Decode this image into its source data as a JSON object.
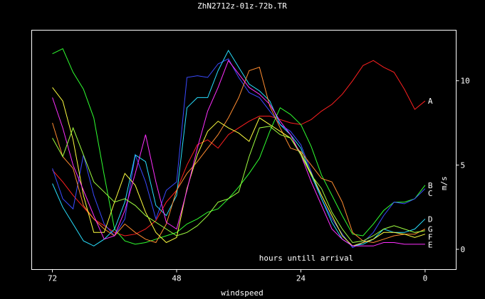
{
  "chart_data": {
    "type": "line",
    "title": "ZhN2712z-01z-72b.TR",
    "xlabel": "windspeed",
    "ylabel": "m/s",
    "annotation": "hours untill arrival",
    "x_ticks": [
      72,
      48,
      24,
      0
    ],
    "y_ticks": [
      0,
      5,
      10
    ],
    "xlim": [
      76,
      -6
    ],
    "ylim": [
      -1.2,
      13
    ],
    "x": [
      72,
      70,
      68,
      66,
      64,
      62,
      60,
      58,
      56,
      54,
      52,
      50,
      48,
      46,
      44,
      42,
      40,
      38,
      36,
      34,
      32,
      30,
      28,
      26,
      24,
      22,
      20,
      18,
      16,
      14,
      12,
      10,
      8,
      6,
      4,
      2,
      0
    ],
    "series": [
      {
        "name": "A",
        "color": "#ff2020",
        "values": [
          4.7,
          4.0,
          3.2,
          2.5,
          1.8,
          1.4,
          1.0,
          0.8,
          0.9,
          1.2,
          1.7,
          2.8,
          3.5,
          5.0,
          6.2,
          6.5,
          6.0,
          6.8,
          7.2,
          7.6,
          7.9,
          7.9,
          7.7,
          7.5,
          7.4,
          7.7,
          8.2,
          8.6,
          9.2,
          10.0,
          10.9,
          11.2,
          10.8,
          10.5,
          9.5,
          8.3,
          8.8
        ]
      },
      {
        "name": "B",
        "color": "#30ff30",
        "values": [
          11.6,
          11.9,
          10.5,
          9.5,
          7.8,
          4.4,
          1.2,
          0.5,
          0.3,
          0.4,
          0.6,
          0.8,
          1.0,
          1.5,
          1.8,
          2.2,
          2.4,
          3.0,
          3.7,
          4.5,
          5.4,
          7.0,
          8.4,
          8.0,
          7.4,
          6.1,
          4.4,
          3.2,
          2.0,
          0.9,
          0.8,
          1.5,
          2.3,
          2.8,
          2.8,
          3.0,
          3.8
        ]
      },
      {
        "name": "C",
        "color": "#3a4aff",
        "values": [
          4.8,
          3.0,
          2.4,
          5.6,
          3.2,
          1.5,
          0.8,
          1.8,
          5.6,
          4.0,
          1.8,
          3.5,
          4.0,
          10.2,
          10.3,
          10.2,
          11.0,
          11.3,
          10.2,
          9.3,
          9.0,
          8.2,
          7.4,
          7.0,
          6.2,
          4.6,
          3.0,
          1.8,
          0.9,
          0.1,
          0.4,
          1.0,
          2.0,
          2.8,
          2.7,
          3.0,
          3.6
        ]
      },
      {
        "name": "D",
        "color": "#28e0ff",
        "values": [
          3.9,
          2.5,
          1.5,
          0.5,
          0.2,
          0.6,
          1.2,
          2.8,
          5.6,
          5.2,
          2.6,
          2.0,
          3.2,
          8.4,
          9.0,
          9.0,
          10.6,
          11.8,
          10.8,
          9.8,
          9.4,
          8.8,
          7.4,
          6.8,
          6.0,
          4.4,
          3.0,
          1.6,
          0.6,
          0.2,
          0.3,
          0.6,
          1.2,
          1.0,
          1.0,
          1.2,
          1.8
        ]
      },
      {
        "name": "G",
        "color": "#ff8c30",
        "values": [
          7.5,
          5.5,
          4.8,
          2.6,
          1.8,
          1.2,
          0.8,
          1.5,
          1.0,
          0.6,
          0.4,
          1.5,
          3.5,
          4.5,
          5.2,
          6.0,
          6.8,
          7.8,
          9.0,
          10.6,
          10.8,
          8.5,
          7.2,
          6.0,
          5.8,
          5.0,
          4.2,
          4.0,
          2.8,
          1.0,
          0.5,
          0.4,
          0.6,
          0.8,
          0.9,
          0.9,
          1.2
        ]
      },
      {
        "name": "F",
        "color": "#ffff40",
        "values": [
          9.6,
          8.8,
          6.5,
          3.2,
          1.0,
          1.0,
          2.8,
          4.5,
          3.8,
          2.2,
          1.0,
          0.4,
          0.7,
          3.6,
          5.6,
          7.0,
          7.6,
          7.2,
          6.9,
          6.4,
          7.8,
          7.4,
          7.0,
          6.6,
          5.7,
          4.5,
          3.2,
          2.0,
          0.8,
          0.2,
          0.4,
          0.6,
          1.0,
          1.0,
          0.9,
          0.7,
          0.9
        ]
      },
      {
        "name": "E",
        "color": "#ff30ff",
        "values": [
          9.0,
          7.2,
          5.0,
          3.5,
          2.0,
          0.6,
          0.8,
          2.3,
          4.5,
          6.8,
          4.0,
          1.6,
          1.2,
          3.5,
          6.0,
          8.2,
          9.6,
          11.2,
          10.4,
          9.6,
          9.2,
          8.6,
          7.6,
          6.8,
          5.6,
          4.0,
          2.6,
          1.2,
          0.6,
          0.2,
          0.2,
          0.2,
          0.4,
          0.4,
          0.3,
          0.3,
          0.3
        ]
      },
      {
        "name": "",
        "color": "#a0ff40",
        "values": [
          6.6,
          5.5,
          7.2,
          5.6,
          4.0,
          3.4,
          2.8,
          3.0,
          2.6,
          2.0,
          1.6,
          1.2,
          0.8,
          1.0,
          1.4,
          2.0,
          2.8,
          3.0,
          3.4,
          5.5,
          7.2,
          7.3,
          6.8,
          6.6,
          5.6,
          4.4,
          3.6,
          2.2,
          1.2,
          0.4,
          0.5,
          0.8,
          1.2,
          1.4,
          1.2,
          1.0,
          1.1
        ]
      }
    ]
  }
}
